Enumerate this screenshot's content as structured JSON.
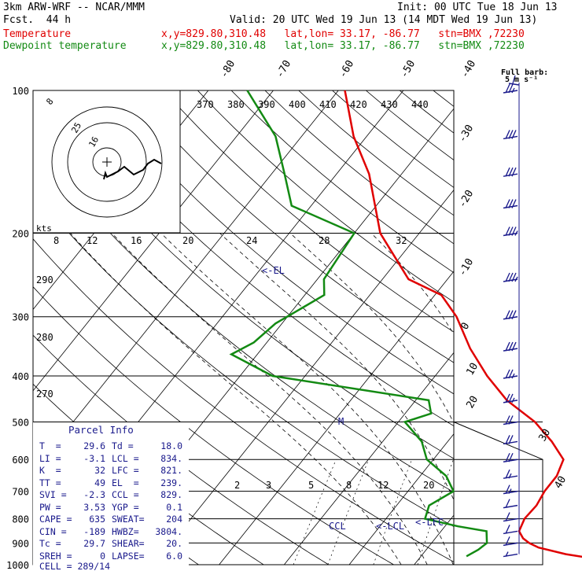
{
  "header": {
    "model": "3km ARW-WRF -- NCAR/MMM",
    "init": "Init: 00 UTC Tue 18 Jun 13",
    "fcst": "Fcst.  44 h",
    "valid": "Valid: 20 UTC Wed 19 Jun 13 (14 MDT Wed 19 Jun 13)",
    "temp_label": "Temperature",
    "dew_label": "Dewpoint temperature",
    "temp_loc": "x,y=829.80,310.48   lat,lon= 33.17, -86.77   stn=BMX ,72230",
    "dew_loc": "x,y=829.80,310.48   lat,lon= 33.17, -86.77   stn=BMX ,72230"
  },
  "barb_legend": {
    "line1": "Full barb:",
    "line2": "5 m s⁻¹"
  },
  "colors": {
    "temperature": "#e00000",
    "dewpoint": "#138a13",
    "text_blue": "#1a1a8c",
    "lines": "#000000"
  },
  "chart_data": {
    "type": "line",
    "title": "",
    "yscale": "log",
    "y_axis_ticks": [
      "100",
      "200",
      "300",
      "400",
      "500",
      "600",
      "700",
      "800",
      "900",
      "1000"
    ],
    "isotherm_ticks": [
      "-80",
      "-70",
      "-60",
      "-50",
      "-40",
      "-30",
      "-20",
      "-10",
      "0",
      "10",
      "20",
      "30",
      "40"
    ],
    "theta_labels": [
      "370",
      "380",
      "390",
      "400",
      "410",
      "420",
      "430",
      "440",
      "290",
      "280",
      "270"
    ],
    "mixing_ratio_labels": [
      "2",
      "3",
      "5",
      "8",
      "12",
      "20"
    ],
    "hodograph": {
      "unit_label": "kts",
      "ring_labels": [
        "8",
        "12",
        "16",
        "20",
        "24",
        "28",
        "32"
      ],
      "inset_ring_labels": [
        "8",
        "25",
        "16"
      ]
    },
    "series": [
      {
        "name": "Temperature",
        "x": [
          39,
          32,
          27,
          25,
          23.5,
          22,
          21.3,
          21.5,
          21,
          21,
          20,
          16,
          11,
          4,
          -2,
          -8,
          -14,
          -19,
          -26,
          -36,
          -45,
          -52,
          -59
        ],
        "y": [
          980,
          950,
          920,
          900,
          880,
          850,
          800,
          750,
          700,
          650,
          600,
          550,
          500,
          450,
          400,
          350,
          300,
          270,
          250,
          200,
          150,
          125,
          100
        ]
      },
      {
        "name": "Dewpoint temperature",
        "x": [
          17,
          18,
          18.5,
          17,
          12,
          6,
          5,
          7,
          4,
          -1,
          -4,
          -9,
          -6,
          -8,
          -35,
          -44,
          -42,
          -41,
          -37,
          -39,
          -40,
          -53,
          -58,
          -64,
          -74
        ],
        "y": [
          960,
          930,
          900,
          850,
          830,
          800,
          750,
          700,
          650,
          600,
          550,
          500,
          480,
          450,
          400,
          360,
          340,
          310,
          270,
          250,
          200,
          175,
          150,
          125,
          100
        ]
      }
    ],
    "annotations": [
      {
        "text": "<-EL",
        "p": 239
      },
      {
        "text": "M",
        "p": 500
      },
      {
        "text": "CCL",
        "p": 829
      },
      {
        "text": "<-LCL",
        "p": 834
      },
      {
        "text": "<-LFC",
        "p": 821
      }
    ],
    "wind_barbs": {
      "pressure": [
        950,
        900,
        850,
        800,
        750,
        700,
        650,
        600,
        550,
        500,
        450,
        400,
        350,
        300,
        250,
        200,
        175,
        150,
        125,
        100
      ],
      "speed_ms": [
        4,
        5,
        5,
        6,
        6,
        8,
        9,
        10,
        11,
        12,
        13,
        14,
        15,
        17,
        18,
        18,
        17,
        16,
        15,
        14
      ]
    }
  },
  "parcel_info": {
    "title": "Parcel Info",
    "rows": [
      [
        "T  =",
        "29.6",
        "Td =",
        "18.0"
      ],
      [
        "LI =",
        "-3.1",
        "LCL =",
        "834."
      ],
      [
        "K  =",
        "32",
        "LFC =",
        "821."
      ],
      [
        "TT =",
        "49",
        "EL  =",
        "239."
      ],
      [
        "SVI =",
        "-2.3",
        "CCL =",
        "829."
      ],
      [
        "PW =",
        "3.53",
        "YGP =",
        "0.1"
      ],
      [
        "CAPE =",
        "635",
        "SWEAT=",
        "204"
      ],
      [
        "CIN =",
        "-189",
        "HWBZ=",
        "3804."
      ],
      [
        "Tc =",
        "29.7",
        "SHEAR=",
        "20."
      ],
      [
        "SREH =",
        "0",
        "LAPSE=",
        "6.0"
      ]
    ],
    "cell": "CELL = 289/14"
  }
}
